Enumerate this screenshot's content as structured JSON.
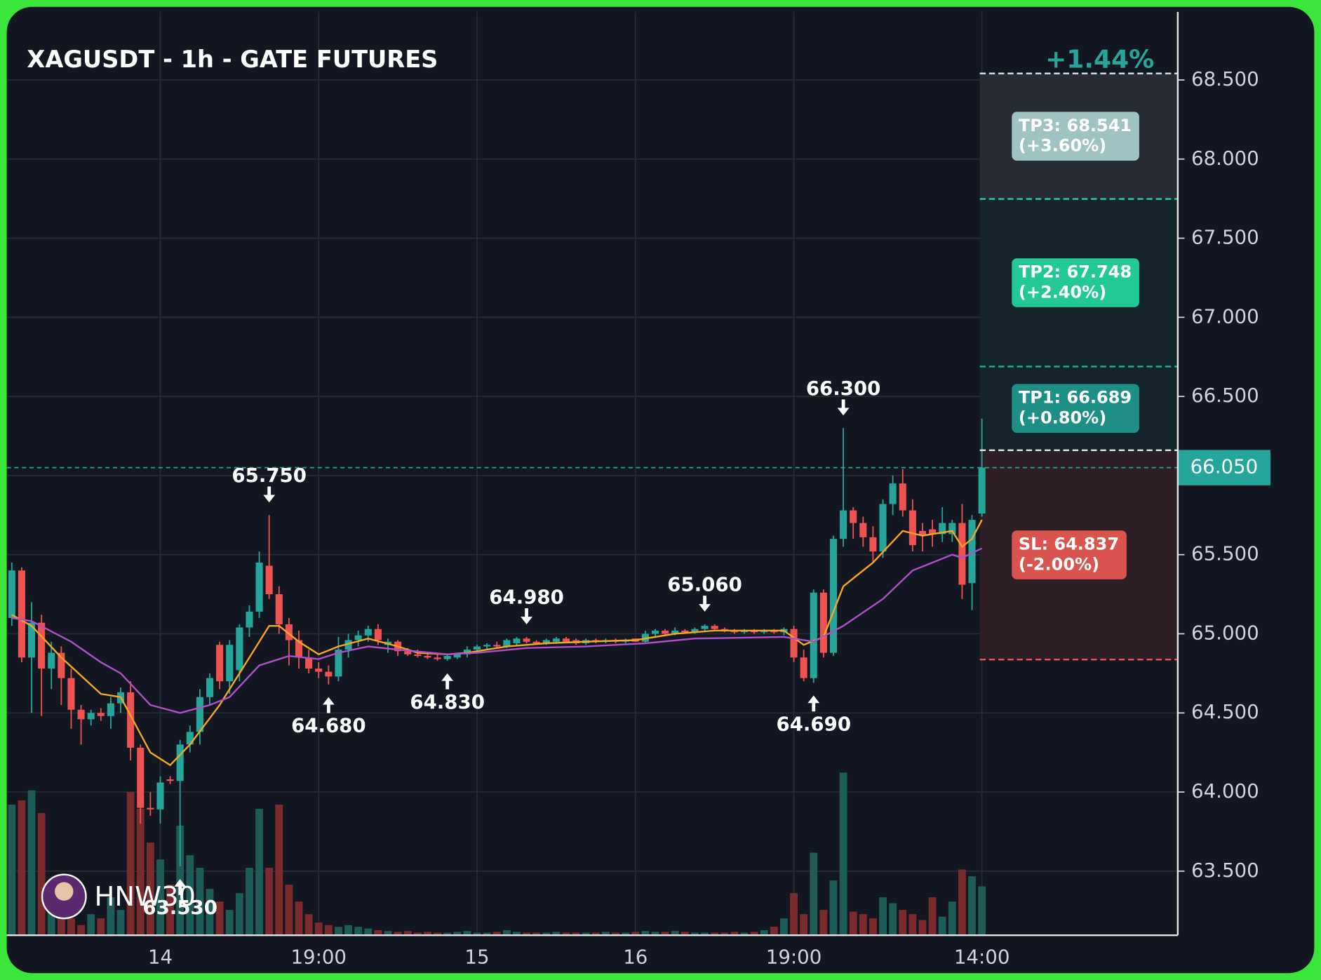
{
  "chart_data": {
    "type": "candlestick",
    "title": "XAGUSDT - 1h - GATE FUTURES",
    "change_label": "+1.44%",
    "watermark": "HNW30",
    "up_color": "#26a69a",
    "down_color": "#ef5350",
    "up_volume_color": "#1d5c57",
    "down_volume_color": "#7c2b2d",
    "grid": true,
    "ylim": [
      63.095,
      68.93
    ],
    "yticks": [
      {
        "value": 63.5,
        "label": "63.500"
      },
      {
        "value": 64,
        "label": "64.000"
      },
      {
        "value": 64.5,
        "label": "64.500"
      },
      {
        "value": 65,
        "label": "65.000"
      },
      {
        "value": 65.5,
        "label": "65.500"
      },
      {
        "value": 66,
        "label": "66.000"
      },
      {
        "value": 66.5,
        "label": "66.500"
      },
      {
        "value": 67,
        "label": "67.000"
      },
      {
        "value": 67.5,
        "label": "67.500"
      },
      {
        "value": 68,
        "label": "68.000"
      },
      {
        "value": 68.5,
        "label": "68.500"
      }
    ],
    "categories": [
      null,
      null,
      null,
      null,
      null,
      null,
      null,
      null,
      null,
      null,
      null,
      null,
      null,
      null,
      null,
      "14",
      null,
      null,
      null,
      null,
      null,
      null,
      null,
      null,
      null,
      null,
      null,
      null,
      null,
      null,
      null,
      "19:00",
      null,
      null,
      null,
      null,
      null,
      null,
      null,
      null,
      null,
      null,
      null,
      null,
      null,
      null,
      null,
      "15",
      null,
      null,
      null,
      null,
      null,
      null,
      null,
      null,
      null,
      null,
      null,
      null,
      null,
      null,
      null,
      "16",
      null,
      null,
      null,
      null,
      null,
      null,
      null,
      null,
      null,
      null,
      null,
      null,
      null,
      null,
      null,
      "19:00",
      null,
      null,
      null,
      null,
      null,
      null,
      null,
      null,
      null,
      null,
      null,
      null,
      null,
      null,
      null,
      null,
      null,
      null,
      "14:00"
    ],
    "ohlc": [
      [
        65.1,
        65.45,
        65.05,
        65.4
      ],
      [
        65.4,
        65.42,
        64.82,
        64.85
      ],
      [
        64.85,
        65.2,
        64.5,
        65.07
      ],
      [
        65.07,
        65.12,
        64.48,
        64.78
      ],
      [
        64.78,
        64.95,
        64.65,
        64.88
      ],
      [
        64.88,
        64.92,
        64.55,
        64.72
      ],
      [
        64.72,
        64.78,
        64.4,
        64.52
      ],
      [
        64.52,
        64.55,
        64.3,
        64.46
      ],
      [
        64.46,
        64.52,
        64.42,
        64.5
      ],
      [
        64.5,
        64.53,
        64.45,
        64.48
      ],
      [
        64.48,
        64.6,
        64.4,
        64.56
      ],
      [
        64.56,
        64.66,
        64.5,
        64.63
      ],
      [
        64.63,
        64.7,
        64.2,
        64.28
      ],
      [
        64.28,
        64.3,
        63.8,
        63.9
      ],
      [
        63.9,
        64.0,
        63.85,
        63.89
      ],
      [
        63.89,
        64.1,
        63.8,
        64.06
      ],
      [
        64.08,
        64.1,
        64.05,
        64.07
      ],
      [
        64.07,
        64.33,
        63.53,
        64.3
      ],
      [
        64.3,
        64.42,
        64.25,
        64.38
      ],
      [
        64.38,
        64.65,
        64.3,
        64.6
      ],
      [
        64.6,
        64.75,
        64.55,
        64.72
      ],
      [
        64.93,
        64.95,
        64.65,
        64.7
      ],
      [
        64.7,
        64.96,
        64.62,
        64.93
      ],
      [
        64.77,
        65.06,
        64.7,
        65.04
      ],
      [
        65.04,
        65.18,
        64.98,
        65.14
      ],
      [
        65.14,
        65.52,
        65.1,
        65.45
      ],
      [
        65.43,
        65.75,
        65.22,
        65.25
      ],
      [
        65.25,
        65.3,
        65.0,
        65.06
      ],
      [
        65.06,
        65.1,
        64.8,
        64.96
      ],
      [
        64.96,
        65.02,
        64.78,
        64.85
      ],
      [
        64.85,
        64.9,
        64.75,
        64.78
      ],
      [
        64.78,
        64.82,
        64.72,
        64.76
      ],
      [
        64.76,
        64.8,
        64.68,
        64.73
      ],
      [
        64.73,
        64.98,
        64.7,
        64.9
      ],
      [
        64.9,
        65.0,
        64.85,
        64.96
      ],
      [
        64.96,
        65.02,
        64.92,
        64.99
      ],
      [
        64.99,
        65.05,
        64.95,
        65.03
      ],
      [
        65.03,
        65.06,
        64.93,
        64.96
      ],
      [
        64.93,
        64.97,
        64.88,
        64.95
      ],
      [
        64.95,
        64.96,
        64.86,
        64.89
      ],
      [
        64.89,
        64.91,
        64.86,
        64.87
      ],
      [
        64.87,
        64.9,
        64.85,
        64.86
      ],
      [
        64.86,
        64.88,
        64.84,
        64.85
      ],
      [
        64.85,
        64.87,
        64.83,
        64.84
      ],
      [
        64.84,
        64.87,
        64.83,
        64.86
      ],
      [
        64.85,
        64.88,
        64.84,
        64.87
      ],
      [
        64.87,
        64.92,
        64.85,
        64.9
      ],
      [
        64.9,
        64.93,
        64.88,
        64.92
      ],
      [
        64.92,
        64.94,
        64.9,
        64.93
      ],
      [
        64.93,
        64.95,
        64.91,
        64.92
      ],
      [
        64.92,
        64.97,
        64.91,
        64.96
      ],
      [
        64.94,
        64.98,
        64.92,
        64.97
      ],
      [
        64.97,
        64.98,
        64.94,
        64.95
      ],
      [
        64.95,
        64.96,
        64.93,
        64.94
      ],
      [
        64.94,
        64.97,
        64.93,
        64.96
      ],
      [
        64.95,
        64.98,
        64.94,
        64.97
      ],
      [
        64.97,
        64.98,
        64.94,
        64.95
      ],
      [
        64.96,
        64.97,
        64.93,
        64.94
      ],
      [
        64.94,
        64.97,
        64.93,
        64.96
      ],
      [
        64.96,
        64.97,
        64.94,
        64.95
      ],
      [
        64.95,
        64.97,
        64.94,
        64.96
      ],
      [
        64.96,
        64.97,
        64.94,
        64.95
      ],
      [
        64.95,
        64.97,
        64.94,
        64.96
      ],
      [
        64.97,
        64.97,
        64.95,
        64.95
      ],
      [
        64.95,
        65.02,
        64.94,
        65.0
      ],
      [
        65.0,
        65.03,
        64.98,
        65.02
      ],
      [
        65.02,
        65.03,
        64.99,
        65.0
      ],
      [
        65.0,
        65.04,
        64.99,
        65.02
      ],
      [
        65.02,
        65.03,
        65.0,
        65.01
      ],
      [
        65.01,
        65.04,
        65.0,
        65.03
      ],
      [
        65.03,
        65.06,
        65.02,
        65.05
      ],
      [
        65.05,
        65.06,
        65.02,
        65.03
      ],
      [
        65.03,
        65.04,
        65.01,
        65.02
      ],
      [
        65.02,
        65.03,
        65.0,
        65.01
      ],
      [
        65.01,
        65.03,
        65.0,
        65.02
      ],
      [
        65.02,
        65.03,
        65.0,
        65.01
      ],
      [
        65.01,
        65.03,
        65.0,
        65.02
      ],
      [
        65.02,
        65.03,
        65.0,
        65.01
      ],
      [
        65.01,
        65.04,
        64.99,
        65.03
      ],
      [
        65.03,
        65.05,
        64.82,
        64.85
      ],
      [
        64.85,
        64.9,
        64.7,
        64.72
      ],
      [
        64.72,
        65.28,
        64.69,
        65.26
      ],
      [
        65.26,
        65.28,
        64.85,
        64.88
      ],
      [
        64.88,
        65.62,
        64.86,
        65.6
      ],
      [
        65.6,
        66.3,
        65.55,
        65.78
      ],
      [
        65.78,
        65.8,
        65.6,
        65.7
      ],
      [
        65.7,
        65.74,
        65.55,
        65.61
      ],
      [
        65.61,
        65.68,
        65.45,
        65.52
      ],
      [
        65.52,
        65.85,
        65.48,
        65.82
      ],
      [
        65.82,
        66.0,
        65.75,
        65.95
      ],
      [
        65.95,
        66.04,
        65.74,
        65.78
      ],
      [
        65.78,
        65.85,
        65.52,
        65.56
      ],
      [
        65.65,
        65.7,
        65.52,
        65.62
      ],
      [
        65.66,
        65.72,
        65.55,
        65.63
      ],
      [
        65.63,
        65.8,
        65.58,
        65.7
      ],
      [
        65.63,
        65.72,
        65.58,
        65.7
      ],
      [
        65.7,
        65.82,
        65.22,
        65.31
      ],
      [
        65.32,
        65.75,
        65.15,
        65.72
      ],
      [
        65.76,
        66.36,
        65.74,
        66.05
      ]
    ],
    "volumes": [
      155,
      160,
      172,
      145,
      60,
      40,
      20,
      12,
      25,
      20,
      45,
      30,
      170,
      150,
      110,
      90,
      60,
      130,
      95,
      80,
      55,
      40,
      30,
      50,
      80,
      150,
      80,
      155,
      60,
      40,
      25,
      15,
      12,
      10,
      12,
      10,
      8,
      6,
      5,
      4,
      5,
      3,
      4,
      3,
      3,
      4,
      5,
      3,
      3,
      4,
      6,
      4,
      3,
      3,
      3,
      4,
      3,
      3,
      3,
      3,
      4,
      3,
      3,
      4,
      5,
      4,
      4,
      5,
      4,
      3,
      3,
      3,
      3,
      4,
      3,
      4,
      6,
      10,
      20,
      50,
      25,
      98,
      30,
      65,
      193,
      28,
      25,
      20,
      45,
      38,
      30,
      25,
      18,
      45,
      22,
      40,
      78,
      70,
      58
    ],
    "moving_averages": [
      {
        "color": "#f5a623",
        "x": [
          0,
          2,
          5,
          9,
          11,
          14,
          16,
          18,
          21,
          23,
          26,
          27,
          29,
          31,
          33,
          36,
          39,
          41,
          44,
          46,
          50,
          54,
          58,
          63,
          67,
          71,
          78,
          80,
          82,
          84,
          87,
          90,
          92,
          95,
          96,
          97,
          98
        ],
        "values": [
          65.12,
          65.05,
          64.85,
          64.62,
          64.6,
          64.25,
          64.17,
          64.3,
          64.55,
          64.75,
          65.05,
          65.05,
          64.95,
          64.87,
          64.92,
          64.97,
          64.92,
          64.88,
          64.87,
          64.88,
          64.92,
          64.94,
          64.95,
          64.96,
          65.0,
          65.02,
          65.02,
          64.93,
          64.98,
          65.3,
          65.45,
          65.65,
          65.62,
          65.65,
          65.55,
          65.6,
          65.72
        ]
      },
      {
        "color": "#b04fc9",
        "x": [
          0,
          2,
          6,
          9,
          11,
          14,
          17,
          20,
          22,
          25,
          28,
          31,
          33,
          36,
          39,
          44,
          47,
          52,
          58,
          64,
          69,
          78,
          81,
          84,
          88,
          91,
          93,
          95,
          96,
          98
        ],
        "values": [
          65.1,
          65.08,
          64.95,
          64.82,
          64.75,
          64.55,
          64.5,
          64.55,
          64.6,
          64.8,
          64.86,
          64.84,
          64.88,
          64.92,
          64.9,
          64.87,
          64.88,
          64.91,
          64.92,
          64.94,
          64.97,
          64.98,
          64.95,
          65.05,
          65.22,
          65.4,
          65.45,
          65.5,
          65.48,
          65.54
        ]
      }
    ],
    "annotations": [
      {
        "index": 17,
        "value": 63.53,
        "label": "63.530",
        "kind": "low"
      },
      {
        "index": 26,
        "value": 65.75,
        "label": "65.750",
        "kind": "high"
      },
      {
        "index": 32,
        "value": 64.68,
        "label": "64.680",
        "kind": "low"
      },
      {
        "index": 44,
        "value": 64.83,
        "label": "64.830",
        "kind": "low"
      },
      {
        "index": 52,
        "value": 64.98,
        "label": "64.980",
        "kind": "high"
      },
      {
        "index": 70,
        "value": 65.06,
        "label": "65.060",
        "kind": "high"
      },
      {
        "index": 81,
        "value": 64.69,
        "label": "64.690",
        "kind": "low"
      },
      {
        "index": 84,
        "value": 66.3,
        "label": "66.300",
        "kind": "high"
      }
    ],
    "last_price": {
      "value": 66.05,
      "label": "66.050",
      "color": "#26a69a"
    },
    "entry": 66.16,
    "entry_color": "#e6e6e6",
    "levels": [
      {
        "value": 68.541,
        "label": "TP3: 68.541",
        "change": "(+3.60%)",
        "line_color": "#cfdede",
        "zone_color": "#262b34",
        "box_color": "#9fc3c2"
      },
      {
        "value": 67.748,
        "label": "TP2: 67.748",
        "change": "(+2.40%)",
        "line_color": "#26c6a6",
        "zone_color": "#13252b",
        "box_color": "#22c997"
      },
      {
        "value": 66.689,
        "label": "TP1: 66.689",
        "change": "(+0.80%)",
        "line_color": "#26a69a",
        "zone_color": "#13252b",
        "box_color": "#1e8f84"
      },
      {
        "value": 64.837,
        "label": "SL: 64.837",
        "change": "(-2.00%)",
        "line_color": "#ef5350",
        "zone_color": "#2e1f26",
        "box_color": "#d9534f"
      }
    ]
  }
}
